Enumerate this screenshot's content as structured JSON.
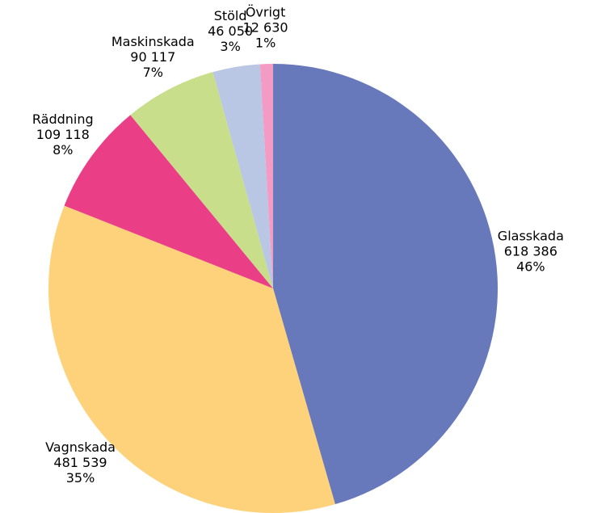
{
  "chart_data": {
    "type": "pie",
    "categories": [
      "Glasskada",
      "Vagnskada",
      "Räddning",
      "Maskinskada",
      "Stöld",
      "Övrigt"
    ],
    "values": [
      618386,
      481539,
      109118,
      90117,
      46050,
      12630
    ],
    "value_labels": [
      "618 386",
      "481 539",
      "109 118",
      "90 117",
      "46 050",
      "12 630"
    ],
    "percent_labels": [
      "46%",
      "35%",
      "8%",
      "7%",
      "3%",
      "1%"
    ],
    "colors": [
      "#6779bb",
      "#fed27a",
      "#ea3f86",
      "#c8de8b",
      "#b9c6e4",
      "#f39bc4"
    ]
  }
}
